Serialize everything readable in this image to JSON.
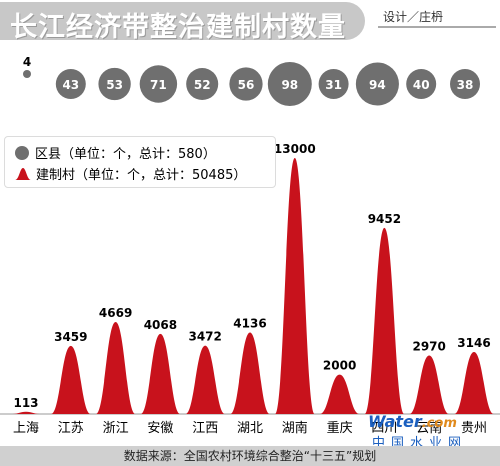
{
  "header": {
    "title": "长江经济带整治建制村数量",
    "credit": "设计／庄枬"
  },
  "legend": {
    "county_label": "区县（单位：个，总计：580）",
    "village_label": "建制村（单位：个，总计：50485）"
  },
  "footer": {
    "source": "数据来源：全国农村环境综合整治“十三五”规划"
  },
  "watermark": {
    "text": "Water",
    "domain": ".com",
    "sub": "中国水业网"
  },
  "colors": {
    "mountain": "#c8121c",
    "bubble": "#6f6f6f",
    "title_band": "#c8c8c8"
  },
  "chart_data": [
    {
      "type": "area",
      "title": "",
      "categories": [
        "上海",
        "江苏",
        "浙江",
        "安徽",
        "江西",
        "湖北",
        "湖南",
        "重庆",
        "四川",
        "云南",
        "贵州"
      ],
      "series": [
        {
          "name": "建制村",
          "values": [
            113,
            3459,
            4669,
            4068,
            3472,
            4136,
            13000,
            2000,
            9452,
            2970,
            3146
          ]
        }
      ],
      "ylim": [
        0,
        13000
      ],
      "grid": false,
      "legend": "top-left"
    },
    {
      "type": "scatter",
      "title": "",
      "categories": [
        "上海",
        "江苏",
        "浙江",
        "安徽",
        "江西",
        "湖北",
        "湖南",
        "重庆",
        "四川",
        "云南",
        "贵州"
      ],
      "series": [
        {
          "name": "区县",
          "values": [
            4,
            43,
            53,
            71,
            52,
            56,
            98,
            31,
            94,
            40,
            38
          ]
        }
      ]
    }
  ]
}
